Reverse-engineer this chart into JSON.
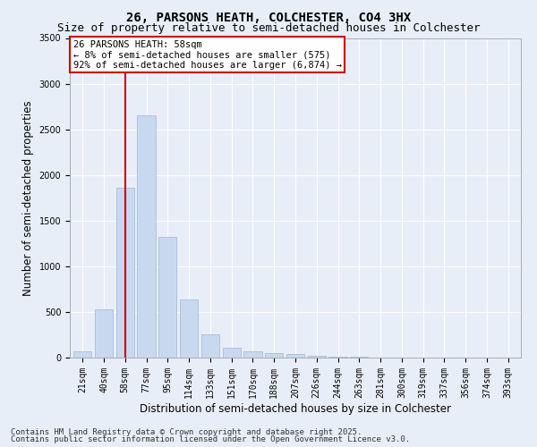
{
  "title_line1": "26, PARSONS HEATH, COLCHESTER, CO4 3HX",
  "title_line2": "Size of property relative to semi-detached houses in Colchester",
  "xlabel": "Distribution of semi-detached houses by size in Colchester",
  "ylabel": "Number of semi-detached properties",
  "categories": [
    "21sqm",
    "40sqm",
    "58sqm",
    "77sqm",
    "95sqm",
    "114sqm",
    "133sqm",
    "151sqm",
    "170sqm",
    "188sqm",
    "207sqm",
    "226sqm",
    "244sqm",
    "263sqm",
    "281sqm",
    "300sqm",
    "319sqm",
    "337sqm",
    "356sqm",
    "374sqm",
    "393sqm"
  ],
  "values": [
    65,
    530,
    1860,
    2650,
    1320,
    640,
    250,
    105,
    65,
    50,
    35,
    20,
    10,
    5,
    3,
    2,
    1,
    1,
    0,
    0,
    0
  ],
  "bar_color": "#c8d9ef",
  "bar_edge_color": "#9ab5d8",
  "highlight_index": 2,
  "highlight_line_color": "#cc0000",
  "annotation_line1": "26 PARSONS HEATH: 58sqm",
  "annotation_line2": "← 8% of semi-detached houses are smaller (575)",
  "annotation_line3": "92% of semi-detached houses are larger (6,874) →",
  "annotation_box_color": "#ffffff",
  "annotation_box_edge": "#cc0000",
  "ylim": [
    0,
    3500
  ],
  "yticks": [
    0,
    500,
    1000,
    1500,
    2000,
    2500,
    3000,
    3500
  ],
  "background_color": "#e8eef8",
  "plot_background": "#e8eef8",
  "grid_color": "#ffffff",
  "footer_line1": "Contains HM Land Registry data © Crown copyright and database right 2025.",
  "footer_line2": "Contains public sector information licensed under the Open Government Licence v3.0.",
  "title_fontsize": 10,
  "subtitle_fontsize": 9,
  "axis_label_fontsize": 8.5,
  "tick_fontsize": 7,
  "annotation_fontsize": 7.5,
  "footer_fontsize": 6.5
}
